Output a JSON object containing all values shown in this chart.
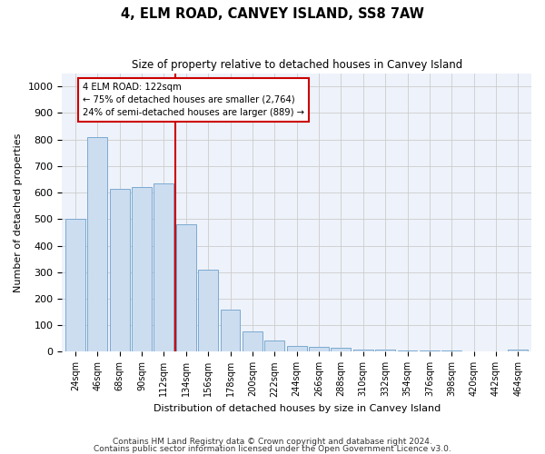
{
  "title": "4, ELM ROAD, CANVEY ISLAND, SS8 7AW",
  "subtitle": "Size of property relative to detached houses in Canvey Island",
  "xlabel": "Distribution of detached houses by size in Canvey Island",
  "ylabel": "Number of detached properties",
  "footnote1": "Contains HM Land Registry data © Crown copyright and database right 2024.",
  "footnote2": "Contains public sector information licensed under the Open Government Licence v3.0.",
  "categories": [
    "24sqm",
    "46sqm",
    "68sqm",
    "90sqm",
    "112sqm",
    "134sqm",
    "156sqm",
    "178sqm",
    "200sqm",
    "222sqm",
    "244sqm",
    "266sqm",
    "288sqm",
    "310sqm",
    "332sqm",
    "354sqm",
    "376sqm",
    "398sqm",
    "420sqm",
    "442sqm",
    "464sqm"
  ],
  "values": [
    500,
    810,
    615,
    620,
    635,
    480,
    308,
    160,
    78,
    42,
    22,
    20,
    15,
    10,
    7,
    5,
    5,
    4,
    2,
    1,
    8
  ],
  "bar_color": "#ccddf0",
  "bar_edge_color": "#7aaad0",
  "marker_line_color": "#cc0000",
  "annotation_line1": "4 ELM ROAD: 122sqm",
  "annotation_line2": "← 75% of detached houses are smaller (2,764)",
  "annotation_line3": "24% of semi-detached houses are larger (889) →",
  "annotation_box_facecolor": "#ffffff",
  "annotation_box_edgecolor": "#cc0000",
  "ylim": [
    0,
    1050
  ],
  "yticks": [
    0,
    100,
    200,
    300,
    400,
    500,
    600,
    700,
    800,
    900,
    1000
  ],
  "grid_color": "#cccccc",
  "background_color": "#eef2fa"
}
